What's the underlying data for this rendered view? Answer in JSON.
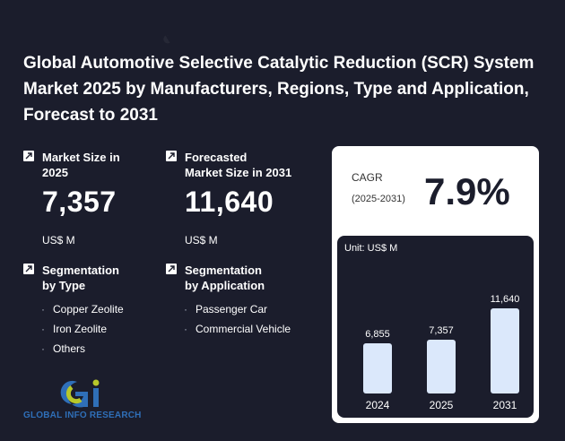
{
  "title": "Global Automotive Selective Catalytic Reduction (SCR) System Market 2025 by Manufacturers, Regions, Type and Application, Forecast to 2031",
  "market_size": {
    "label": "Market Size in 2025",
    "value": "7,357",
    "unit": "US$ M"
  },
  "forecast_size": {
    "label_line1": "Forecasted",
    "label_line2": "Market Size in 2031",
    "value": "11,640",
    "unit": "US$ M"
  },
  "segmentation_type": {
    "label_line1": "Segmentation",
    "label_line2": "by Type",
    "items": [
      "Copper Zeolite",
      "Iron Zeolite",
      "Others"
    ]
  },
  "segmentation_application": {
    "label_line1": "Segmentation",
    "label_line2": "by Application",
    "items": [
      "Passenger Car",
      "Commercial Vehicle"
    ]
  },
  "logo": {
    "text": "GLOBAL INFO RESEARCH"
  },
  "cagr": {
    "label": "CAGR",
    "period": "(2025-2031)",
    "value": "7.9%"
  },
  "chart_data": {
    "type": "bar",
    "unit_label": "Unit: US$ M",
    "categories": [
      "2024",
      "2025",
      "2031"
    ],
    "values": [
      6855,
      7357,
      11640
    ],
    "value_labels": [
      "6,855",
      "7,357",
      "11,640"
    ],
    "ylim": [
      0,
      11640
    ],
    "grid": false,
    "bar_color": "#dbe8fb"
  }
}
